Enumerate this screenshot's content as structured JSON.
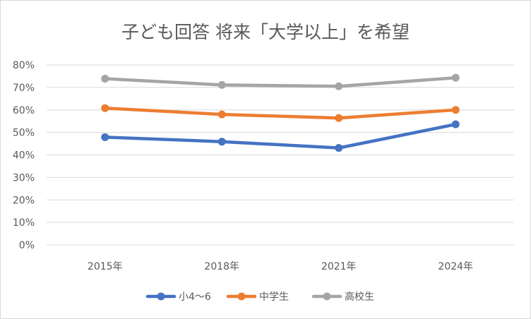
{
  "chart_data": {
    "type": "line",
    "title": "子ども回答 将来「大学以上」を希望",
    "categories": [
      "2015年",
      "2018年",
      "2021年",
      "2024年"
    ],
    "ylim": [
      0,
      80
    ],
    "yticks": [
      "0%",
      "10%",
      "20%",
      "30%",
      "40%",
      "50%",
      "60%",
      "70%",
      "80%"
    ],
    "y_unit": "%",
    "grid": true,
    "legend": "bottom",
    "series": [
      {
        "name": "小4～6",
        "color": "#4472C4",
        "values": [
          47.9,
          45.9,
          43.1,
          53.6
        ]
      },
      {
        "name": "中学生",
        "color": "#ED7D31",
        "values": [
          60.8,
          58.0,
          56.4,
          60.0
        ]
      },
      {
        "name": "高校生",
        "color": "#A5A5A5",
        "values": [
          73.9,
          71.1,
          70.5,
          74.3
        ]
      }
    ]
  }
}
